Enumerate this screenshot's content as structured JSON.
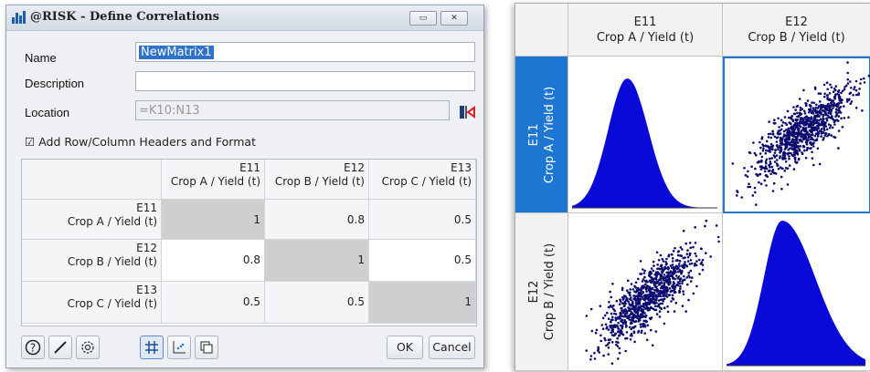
{
  "dialog": {
    "title": "@RISK - Define Correlations",
    "minimize_label": "▭",
    "close_label": "✕",
    "name_label": "Name",
    "name_value": "NewMatrix1",
    "description_label": "Description",
    "description_value": "",
    "location_label": "Location",
    "location_value": "=K10:N13",
    "checkbox_label": "Add Row/Column Headers and Format",
    "checkbox_checked": true,
    "grid": {
      "columns": [
        {
          "ref": "E11",
          "name": "Crop A / Yield (t)"
        },
        {
          "ref": "E12",
          "name": "Crop B / Yield (t)"
        },
        {
          "ref": "E13",
          "name": "Crop C / Yield (t)"
        }
      ],
      "rows": [
        {
          "ref": "E11",
          "name": "Crop A / Yield (t)",
          "values": [
            "1",
            "0.8",
            "0.5"
          ]
        },
        {
          "ref": "E12",
          "name": "Crop B / Yield (t)",
          "values": [
            "0.8",
            "1",
            "0.5"
          ]
        },
        {
          "ref": "E13",
          "name": "Crop C / Yield (t)",
          "values": [
            "0.5",
            "0.5",
            "1"
          ]
        }
      ]
    },
    "ok_label": "OK",
    "cancel_label": "Cancel"
  },
  "matrix_view": {
    "columns": [
      {
        "ref": "E11",
        "name": "Crop A / Yield (t)"
      },
      {
        "ref": "E12",
        "name": "Crop B / Yield (t)"
      }
    ],
    "rows": [
      {
        "ref": "E11",
        "name": "Crop A / Yield (t)"
      },
      {
        "ref": "E12",
        "name": "Crop B / Yield (t)"
      }
    ],
    "correlation": 0.8,
    "fill_color": "#0a0ad8",
    "point_color": "#0b0b6e",
    "selection_color": "#1c76d2"
  }
}
